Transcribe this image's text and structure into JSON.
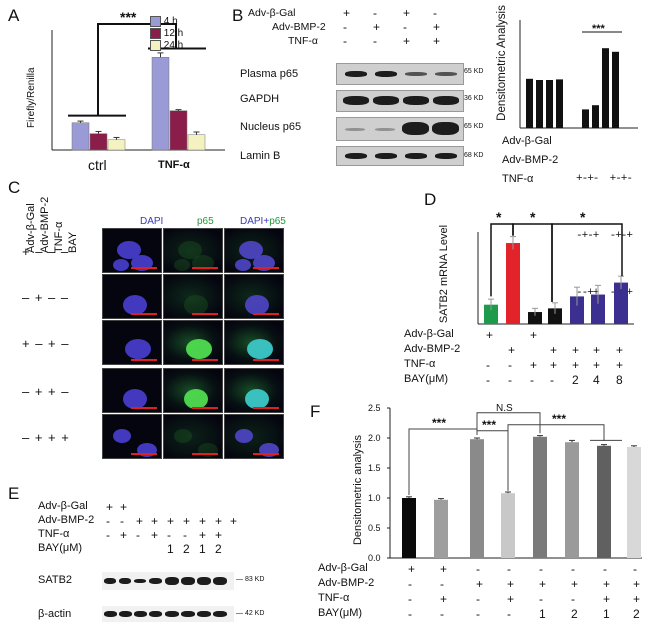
{
  "panels": {
    "A": "A",
    "B": "B",
    "C": "C",
    "D": "D",
    "E": "E",
    "F": "F"
  },
  "panelA": {
    "ylabel": "Firefly/Renilla",
    "groups": [
      "ctrl",
      "TNF-α"
    ],
    "legend": [
      "4 h",
      "12 h",
      "24 h"
    ],
    "colors": [
      "#9a9ad6",
      "#8b1d4a",
      "#f3f2c0"
    ],
    "sig": "***"
  },
  "panelB": {
    "treat_labels": [
      "Adv-β-Gal",
      "Adv-BMP-2",
      "TNF-α"
    ],
    "treat_signs": [
      [
        "+",
        "-",
        "+",
        "-"
      ],
      [
        "-",
        "+",
        "-",
        "+"
      ],
      [
        "-",
        "-",
        "+",
        "+"
      ]
    ],
    "blot_labels": [
      "Plasma p65",
      "GAPDH",
      "Nucleus p65",
      "Lamin B"
    ],
    "kd": [
      "65 KD",
      "36 KD",
      "65 KD",
      "68 KD"
    ],
    "dens_title": "Densitometric Analysis",
    "dens_sig": "***",
    "dens_treat_labels": [
      "Adv-β-Gal",
      "Adv-BMP-2",
      "TNF-α"
    ],
    "dens_treat_signs": [
      "+-+-  +-+-",
      "-+-+  -+-+",
      "--++  --++"
    ]
  },
  "panelC": {
    "col_headers": [
      "DAPI",
      "p65",
      "DAPI+p65"
    ],
    "merge_prefix": "DAPI+",
    "merge_suffix": "p65",
    "row_headers": [
      "Adv-β-Gal",
      "Adv-BMP-2",
      "TNF-α",
      "BAY"
    ],
    "rows": [
      "+ – – –",
      "– + – –",
      "+ – + –",
      "– + + –",
      "– + + +"
    ]
  },
  "panelD": {
    "ylabel": "SATB2 mRNA Level",
    "sig": [
      "*",
      "*",
      "*"
    ],
    "treat_labels": [
      "Adv-β-Gal",
      "Adv-BMP-2",
      "TNF-α",
      "BAY(μM)"
    ],
    "treat_signs": [
      [
        "+",
        "",
        "+",
        "",
        "",
        "",
        ""
      ],
      [
        "",
        "+",
        "",
        "+",
        "+",
        "+",
        "+"
      ],
      [
        "-",
        "-",
        "+",
        "+",
        "+",
        "+",
        "+"
      ],
      [
        "-",
        "-",
        "-",
        "-",
        "2",
        "4",
        "8"
      ]
    ]
  },
  "panelE": {
    "treat_labels": [
      "Adv-β-Gal",
      "Adv-BMP-2",
      "TNF-α",
      "BAY(μM)"
    ],
    "treat_signs": [
      [
        "+",
        "+",
        "",
        "",
        "",
        "",
        "",
        "",
        ""
      ],
      [
        "-",
        "-",
        "+",
        "+",
        "+",
        "+",
        "+",
        "+",
        "+"
      ],
      [
        "-",
        "+",
        "-",
        "+",
        "-",
        "-",
        "+",
        "+",
        ""
      ],
      [
        "",
        "",
        "",
        "",
        "1",
        "2",
        "1",
        "2",
        ""
      ]
    ],
    "blot_labels": [
      "SATB2",
      "β-actin"
    ],
    "kd": [
      "83 KD",
      "42 KD"
    ]
  },
  "panelF": {
    "ylabel": "Densitometric analysis",
    "sig": [
      "***",
      "***",
      "N.S",
      "***"
    ],
    "treat_labels": [
      "Adv-β-Gal",
      "Adv-BMP-2",
      "TNF-α",
      "BAY(μM)"
    ],
    "treat_signs": [
      [
        "+",
        "+",
        "-",
        "-",
        "-",
        "-",
        "-",
        "-"
      ],
      [
        "-",
        "-",
        "+",
        "+",
        "+",
        "+",
        "+",
        "+"
      ],
      [
        "-",
        "+",
        "-",
        "+",
        "-",
        "-",
        "+",
        "+"
      ],
      [
        "-",
        "-",
        "-",
        "-",
        "1",
        "2",
        "1",
        "2"
      ]
    ]
  },
  "chart_data": [
    {
      "type": "bar",
      "id": "A",
      "ylabel": "Firefly/Renilla",
      "categories": [
        "ctrl",
        "TNF-α"
      ],
      "series": [
        {
          "name": "4 h",
          "values": [
            0.5,
            1.7
          ],
          "err": [
            0.03,
            0.08
          ]
        },
        {
          "name": "12 h",
          "values": [
            0.3,
            0.72
          ],
          "err": [
            0.04,
            0.02
          ]
        },
        {
          "name": "24 h",
          "values": [
            0.19,
            0.28
          ],
          "err": [
            0.04,
            0.05
          ]
        }
      ],
      "ylim": [
        0,
        2.2
      ]
    },
    {
      "type": "bar",
      "id": "B",
      "title": "Densitometric Analysis",
      "values": [
        0.82,
        0.8,
        0.8,
        0.81,
        0.31,
        0.38,
        1.33,
        1.27
      ],
      "ylim": [
        0,
        1.5
      ]
    },
    {
      "type": "bar",
      "id": "D",
      "ylabel": "SATB2 mRNA Level",
      "values": [
        1.05,
        4.4,
        0.65,
        0.85,
        1.5,
        1.6,
        2.25
      ],
      "err": [
        0.3,
        0.35,
        0.2,
        0.3,
        0.5,
        0.5,
        0.35
      ],
      "colors": [
        "#1d9a4a",
        "#e3232a",
        "#111111",
        "#111111",
        "#3b2f8f",
        "#3b2f8f",
        "#3b2f8f"
      ],
      "ylim": [
        0,
        5
      ]
    },
    {
      "type": "bar",
      "id": "F",
      "ylabel": "Densitometric analysis",
      "values": [
        1.0,
        0.97,
        1.98,
        1.08,
        2.02,
        1.93,
        1.87,
        1.85
      ],
      "err": [
        0.02,
        0.02,
        0.02,
        0.02,
        0.02,
        0.03,
        0.02,
        0.02
      ],
      "colors": [
        "#0a0a0a",
        "#9e9e9e",
        "#8a8a8a",
        "#c8c8c8",
        "#7a7a7a",
        "#9a9a9a",
        "#606060",
        "#d8d8d8"
      ],
      "ylim": [
        0,
        2.5
      ],
      "yticks": [
        "0.0",
        "0.5",
        "1.0",
        "1.5",
        "2.0",
        "2.5"
      ]
    }
  ]
}
